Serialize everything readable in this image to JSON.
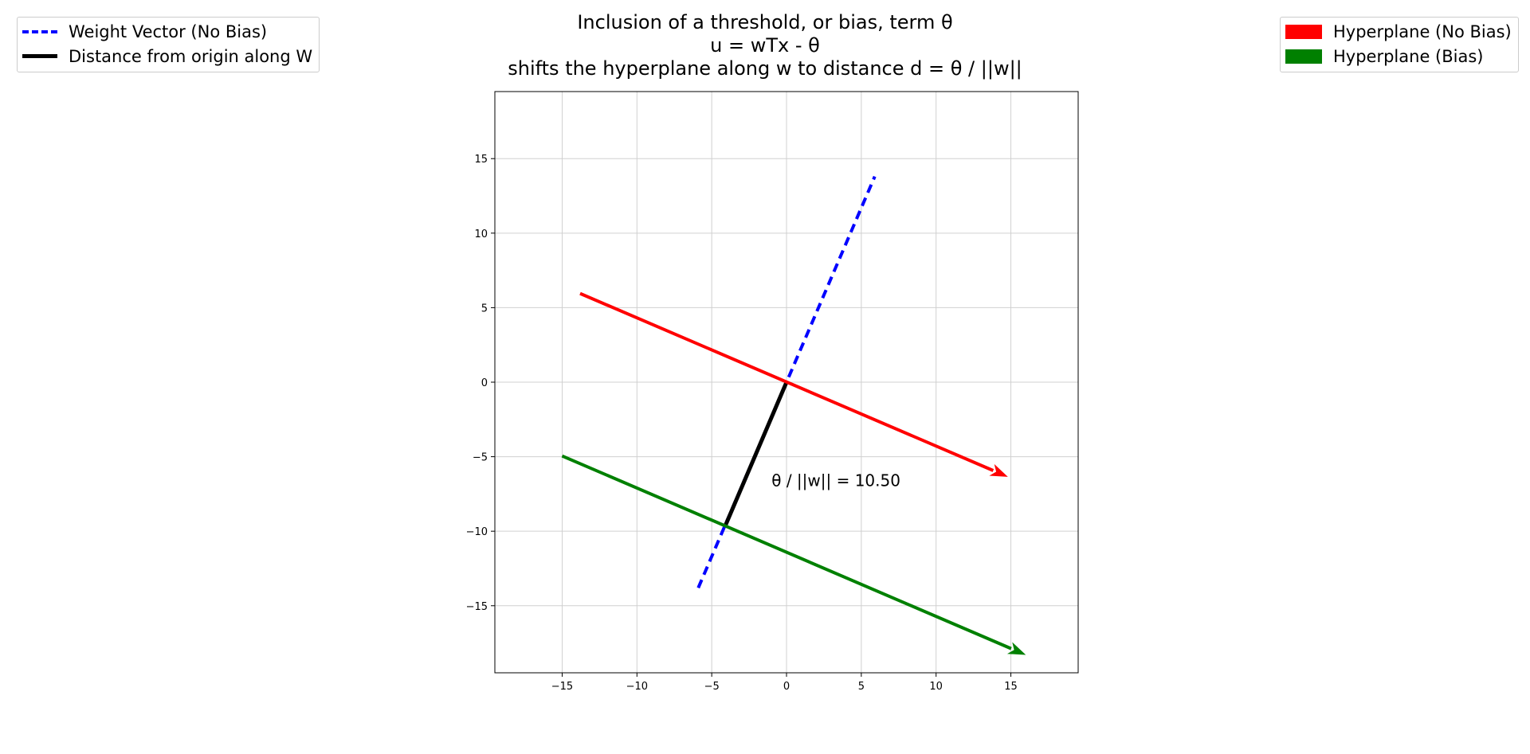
{
  "title": {
    "line1": "Inclusion of a threshold, or bias, term θ",
    "line2": "u = wTx - θ",
    "line3": "shifts the hyperplane along w to distance d = θ / ||w||"
  },
  "legend_left": [
    {
      "label": "Weight Vector (No Bias)",
      "color": "#0000ff",
      "style": "dashed"
    },
    {
      "label": "Distance from origin along W",
      "color": "#000000",
      "style": "solid"
    }
  ],
  "legend_right": [
    {
      "label": "Hyperplane (No Bias)",
      "color": "#ff0000"
    },
    {
      "label": "Hyperplane (Bias)",
      "color": "#008000"
    }
  ],
  "chart_data": {
    "type": "line",
    "xlim": [
      -19.5,
      19.5
    ],
    "ylim": [
      -19.5,
      19.5
    ],
    "xticks": [
      -15,
      -10,
      -5,
      0,
      5,
      10,
      15
    ],
    "yticks": [
      -15,
      -10,
      -5,
      0,
      5,
      10,
      15
    ],
    "grid": true,
    "series": [
      {
        "name": "Weight Vector (No Bias)",
        "color": "#0000ff",
        "style": "dashed",
        "x": [
          -5.9,
          5.9
        ],
        "y": [
          -13.8,
          13.8
        ]
      },
      {
        "name": "Distance from origin along W",
        "color": "#000000",
        "style": "solid",
        "x": [
          0,
          -4.1
        ],
        "y": [
          0,
          -9.65
        ]
      },
      {
        "name": "Hyperplane (No Bias)",
        "color": "#ff0000",
        "style": "arrow",
        "x": [
          -13.8,
          14.8
        ],
        "y": [
          5.95,
          -6.35
        ]
      },
      {
        "name": "Hyperplane (Bias)",
        "color": "#008000",
        "style": "arrow",
        "x": [
          -15.0,
          16.0
        ],
        "y": [
          -4.95,
          -18.3
        ]
      }
    ],
    "annotations": [
      {
        "text": "θ / ||w|| = 10.50",
        "x": -1.0,
        "y": -6.6
      }
    ]
  }
}
